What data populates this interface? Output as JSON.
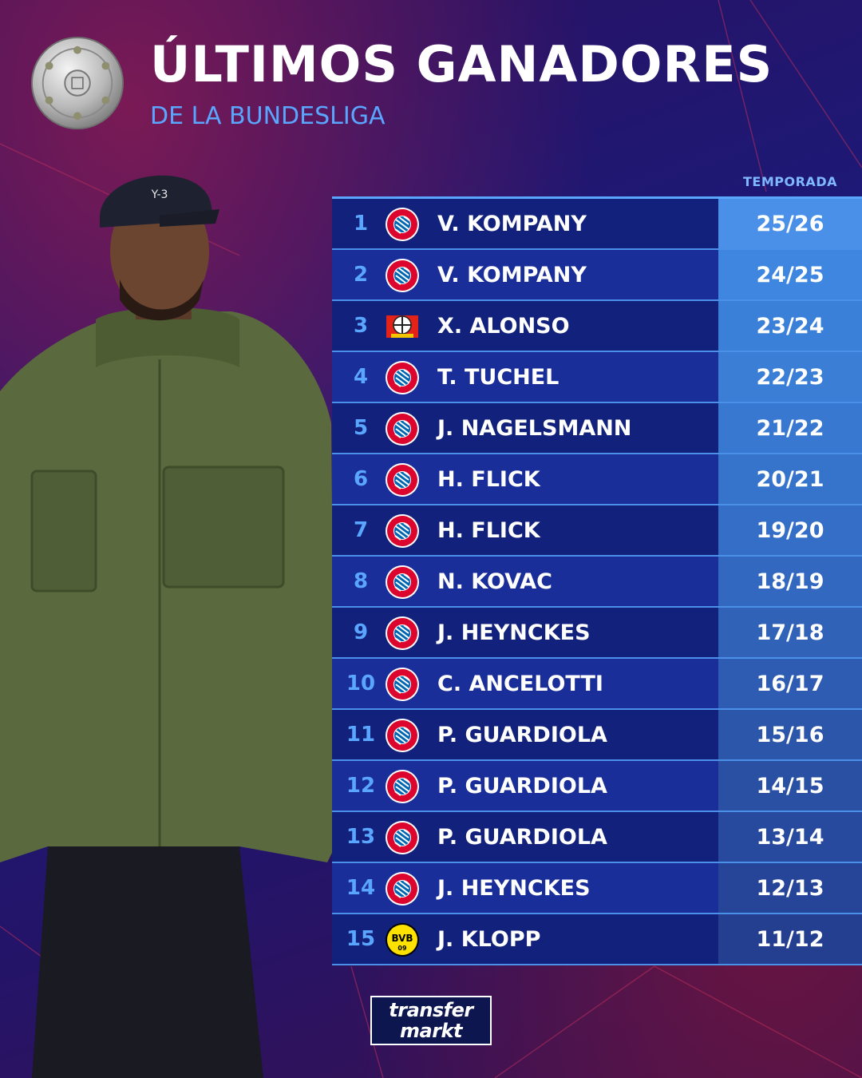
{
  "header": {
    "title": "ÚLTIMOS GANADORES",
    "subtitle": "DE LA BUNDESLIGA"
  },
  "table": {
    "column_header": "TEMPORADA",
    "rows": [
      {
        "num": "1",
        "club": "bayern",
        "coach": "V. KOMPANY",
        "season": "25/26",
        "season_bg": "#4a90e8"
      },
      {
        "num": "2",
        "club": "bayern",
        "coach": "V. KOMPANY",
        "season": "24/25",
        "season_bg": "#3e86e0"
      },
      {
        "num": "3",
        "club": "leverkusen",
        "coach": "X. ALONSO",
        "season": "23/24",
        "season_bg": "#3a80d8"
      },
      {
        "num": "4",
        "club": "bayern",
        "coach": "T. TUCHEL",
        "season": "22/23",
        "season_bg": "#3a7ed6"
      },
      {
        "num": "5",
        "club": "bayern",
        "coach": "J. NAGELSMANN",
        "season": "21/22",
        "season_bg": "#3878d0"
      },
      {
        "num": "6",
        "club": "bayern",
        "coach": "H. FLICK",
        "season": "20/21",
        "season_bg": "#3674cc"
      },
      {
        "num": "7",
        "club": "bayern",
        "coach": "H. FLICK",
        "season": "19/20",
        "season_bg": "#346ec6"
      },
      {
        "num": "8",
        "club": "bayern",
        "coach": "N. KOVAC",
        "season": "18/19",
        "season_bg": "#3268c0"
      },
      {
        "num": "9",
        "club": "bayern",
        "coach": "J. HEYNCKES",
        "season": "17/18",
        "season_bg": "#3062b8"
      },
      {
        "num": "10",
        "club": "bayern",
        "coach": "C. ANCELOTTI",
        "season": "16/17",
        "season_bg": "#2e5cb2"
      },
      {
        "num": "11",
        "club": "bayern",
        "coach": "P. GUARDIOLA",
        "season": "15/16",
        "season_bg": "#2c56aa"
      },
      {
        "num": "12",
        "club": "bayern",
        "coach": "P. GUARDIOLA",
        "season": "14/15",
        "season_bg": "#2a50a4"
      },
      {
        "num": "13",
        "club": "bayern",
        "coach": "P. GUARDIOLA",
        "season": "13/14",
        "season_bg": "#284a9e"
      },
      {
        "num": "14",
        "club": "bayern",
        "coach": "J. HEYNCKES",
        "season": "12/13",
        "season_bg": "#264498"
      },
      {
        "num": "15",
        "club": "dortmund",
        "coach": "J. KLOPP",
        "season": "11/12",
        "season_bg": "#243e90"
      }
    ]
  },
  "footer": {
    "logo_line1": "transfer",
    "logo_line2": "markt"
  },
  "colors": {
    "accent": "#5aa6ff",
    "bayern_red": "#dc052d",
    "bayern_blue": "#0066b2",
    "bvb_yellow": "#fde100"
  },
  "icons": {
    "trophy": "meisterschale-icon",
    "bayern": "fc-bayern-crest-icon",
    "leverkusen": "bayer-leverkusen-crest-icon",
    "dortmund": "bvb-crest-icon"
  }
}
